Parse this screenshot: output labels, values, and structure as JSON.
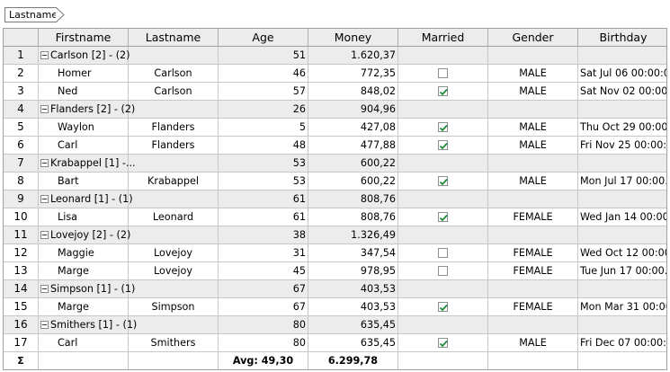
{
  "group_panel": {
    "chip_label": "Lastname"
  },
  "columns": [
    "",
    "Firstname",
    "Lastname",
    "Age",
    "Money",
    "Married",
    "Gender",
    "Birthday"
  ],
  "rows": [
    {
      "type": "group",
      "num": "1",
      "label": "Carlson [2] - (2)",
      "age": "51",
      "money": "1.620,37"
    },
    {
      "type": "data",
      "num": "2",
      "firstname": "Homer",
      "lastname": "Carlson",
      "age": "46",
      "money": "772,35",
      "married": false,
      "gender": "MALE",
      "birthday": "Sat Jul 06 00:00:0..."
    },
    {
      "type": "data",
      "num": "3",
      "firstname": "Ned",
      "lastname": "Carlson",
      "age": "57",
      "money": "848,02",
      "married": true,
      "gender": "MALE",
      "birthday": "Sat Nov 02 00:00:..."
    },
    {
      "type": "group",
      "num": "4",
      "label": "Flanders [2] - (2)",
      "age": "26",
      "money": "904,96"
    },
    {
      "type": "data",
      "num": "5",
      "firstname": "Waylon",
      "lastname": "Flanders",
      "age": "5",
      "money": "427,08",
      "married": true,
      "gender": "MALE",
      "birthday": "Thu Oct 29 00:00:..."
    },
    {
      "type": "data",
      "num": "6",
      "firstname": "Carl",
      "lastname": "Flanders",
      "age": "48",
      "money": "477,88",
      "married": true,
      "gender": "MALE",
      "birthday": "Fri Nov 25 00:00:..."
    },
    {
      "type": "group",
      "num": "7",
      "label": "Krabappel [1] -...",
      "age": "53",
      "money": "600,22"
    },
    {
      "type": "data",
      "num": "8",
      "firstname": "Bart",
      "lastname": "Krabappel",
      "age": "53",
      "money": "600,22",
      "married": true,
      "gender": "MALE",
      "birthday": "Mon Jul 17 00:00..."
    },
    {
      "type": "group",
      "num": "9",
      "label": "Leonard [1] - (1)",
      "age": "61",
      "money": "808,76"
    },
    {
      "type": "data",
      "num": "10",
      "firstname": "Lisa",
      "lastname": "Leonard",
      "age": "61",
      "money": "808,76",
      "married": true,
      "gender": "FEMALE",
      "birthday": "Wed Jan 14 00:00..."
    },
    {
      "type": "group",
      "num": "11",
      "label": "Lovejoy [2] - (2)",
      "age": "38",
      "money": "1.326,49"
    },
    {
      "type": "data",
      "num": "12",
      "firstname": "Maggie",
      "lastname": "Lovejoy",
      "age": "31",
      "money": "347,54",
      "married": false,
      "gender": "FEMALE",
      "birthday": "Wed Oct 12 00:00..."
    },
    {
      "type": "data",
      "num": "13",
      "firstname": "Marge",
      "lastname": "Lovejoy",
      "age": "45",
      "money": "978,95",
      "married": false,
      "gender": "FEMALE",
      "birthday": "Tue Jun 17 00:00..."
    },
    {
      "type": "group",
      "num": "14",
      "label": "Simpson [1] - (1)",
      "age": "67",
      "money": "403,53"
    },
    {
      "type": "data",
      "num": "15",
      "firstname": "Marge",
      "lastname": "Simpson",
      "age": "67",
      "money": "403,53",
      "married": true,
      "gender": "FEMALE",
      "birthday": "Mon Mar 31 00:00..."
    },
    {
      "type": "group",
      "num": "16",
      "label": "Smithers [1] - (1)",
      "age": "80",
      "money": "635,45"
    },
    {
      "type": "data",
      "num": "17",
      "firstname": "Carl",
      "lastname": "Smithers",
      "age": "80",
      "money": "635,45",
      "married": true,
      "gender": "MALE",
      "birthday": "Fri Dec 07 00:00:..."
    }
  ],
  "summary": {
    "symbol": "Σ",
    "age": "Avg: 49,30",
    "money": "6.299,78"
  },
  "colors": {
    "check": "#1e8a3c",
    "group_row_bg": "#ececec",
    "header_bg": "#ececec"
  }
}
